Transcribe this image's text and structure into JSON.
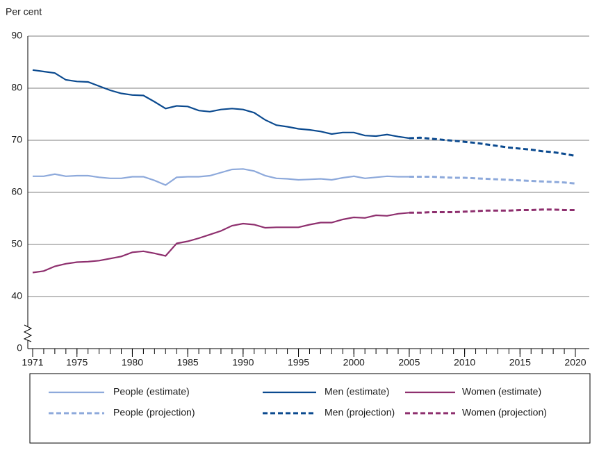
{
  "chart_data": {
    "type": "line",
    "y_label": "Per cent",
    "x": [
      1971,
      1972,
      1973,
      1974,
      1975,
      1976,
      1977,
      1978,
      1979,
      1980,
      1981,
      1982,
      1983,
      1984,
      1985,
      1986,
      1987,
      1988,
      1989,
      1990,
      1991,
      1992,
      1993,
      1994,
      1995,
      1996,
      1997,
      1998,
      1999,
      2000,
      2001,
      2002,
      2003,
      2004,
      2005,
      2006,
      2007,
      2008,
      2009,
      2010,
      2011,
      2012,
      2013,
      2014,
      2015,
      2016,
      2017,
      2018,
      2019,
      2020
    ],
    "xlim": [
      1971,
      2020
    ],
    "xticks": [
      1971,
      1975,
      1980,
      1985,
      1990,
      1995,
      2000,
      2005,
      2010,
      2015,
      2020
    ],
    "ylim": [
      40,
      90
    ],
    "yticks": [
      0,
      40,
      50,
      60,
      70,
      80,
      90
    ],
    "y_axis_break": true,
    "grid": true,
    "series": [
      {
        "name": "People (estimate)",
        "color": "#8da9db",
        "style": "solid",
        "values": [
          63.1,
          63.1,
          63.5,
          63.1,
          63.2,
          63.2,
          62.9,
          62.7,
          62.7,
          63.0,
          63.0,
          62.3,
          61.4,
          62.9,
          63.0,
          63.0,
          63.2,
          63.8,
          64.4,
          64.5,
          64.1,
          63.2,
          62.7,
          62.6,
          62.4,
          62.5,
          62.6,
          62.4,
          62.8,
          63.1,
          62.7,
          62.9,
          63.1,
          63.0,
          63.0,
          null,
          null,
          null,
          null,
          null,
          null,
          null,
          null,
          null,
          null,
          null,
          null,
          null,
          null,
          null
        ]
      },
      {
        "name": "Men (estimate)",
        "color": "#0b4a8f",
        "style": "solid",
        "values": [
          83.5,
          83.2,
          82.9,
          81.6,
          81.3,
          81.2,
          80.4,
          79.6,
          79.0,
          78.7,
          78.6,
          77.4,
          76.1,
          76.6,
          76.5,
          75.7,
          75.5,
          75.9,
          76.1,
          75.9,
          75.3,
          73.9,
          72.9,
          72.6,
          72.2,
          72.0,
          71.7,
          71.2,
          71.5,
          71.5,
          70.9,
          70.8,
          71.1,
          70.7,
          70.4,
          null,
          null,
          null,
          null,
          null,
          null,
          null,
          null,
          null,
          null,
          null,
          null,
          null,
          null,
          null
        ]
      },
      {
        "name": "Women (estimate)",
        "color": "#8e2f6e",
        "style": "solid",
        "values": [
          44.6,
          44.9,
          45.8,
          46.3,
          46.6,
          46.7,
          46.9,
          47.3,
          47.7,
          48.5,
          48.7,
          48.3,
          47.8,
          50.2,
          50.6,
          51.2,
          51.9,
          52.6,
          53.6,
          54.0,
          53.8,
          53.2,
          53.3,
          53.3,
          53.3,
          53.8,
          54.2,
          54.2,
          54.8,
          55.2,
          55.1,
          55.6,
          55.5,
          55.9,
          56.1,
          null,
          null,
          null,
          null,
          null,
          null,
          null,
          null,
          null,
          null,
          null,
          null,
          null,
          null,
          null
        ]
      },
      {
        "name": "People (projection)",
        "color": "#8da9db",
        "style": "dashed",
        "values": [
          null,
          null,
          null,
          null,
          null,
          null,
          null,
          null,
          null,
          null,
          null,
          null,
          null,
          null,
          null,
          null,
          null,
          null,
          null,
          null,
          null,
          null,
          null,
          null,
          null,
          null,
          null,
          null,
          null,
          null,
          null,
          null,
          null,
          null,
          63.0,
          63.0,
          63.0,
          62.9,
          62.8,
          62.8,
          62.7,
          62.6,
          62.5,
          62.4,
          62.3,
          62.2,
          62.1,
          62.0,
          61.9,
          61.7
        ]
      },
      {
        "name": "Men (projection)",
        "color": "#0b4a8f",
        "style": "dashed",
        "values": [
          null,
          null,
          null,
          null,
          null,
          null,
          null,
          null,
          null,
          null,
          null,
          null,
          null,
          null,
          null,
          null,
          null,
          null,
          null,
          null,
          null,
          null,
          null,
          null,
          null,
          null,
          null,
          null,
          null,
          null,
          null,
          null,
          null,
          null,
          70.4,
          70.5,
          70.3,
          70.1,
          69.9,
          69.7,
          69.5,
          69.2,
          68.9,
          68.6,
          68.4,
          68.2,
          67.9,
          67.7,
          67.4,
          67.0
        ]
      },
      {
        "name": "Women (projection)",
        "color": "#8e2f6e",
        "style": "dashed",
        "values": [
          null,
          null,
          null,
          null,
          null,
          null,
          null,
          null,
          null,
          null,
          null,
          null,
          null,
          null,
          null,
          null,
          null,
          null,
          null,
          null,
          null,
          null,
          null,
          null,
          null,
          null,
          null,
          null,
          null,
          null,
          null,
          null,
          null,
          null,
          56.1,
          56.1,
          56.2,
          56.2,
          56.2,
          56.3,
          56.4,
          56.5,
          56.5,
          56.5,
          56.6,
          56.6,
          56.7,
          56.7,
          56.6,
          56.6
        ]
      }
    ]
  }
}
